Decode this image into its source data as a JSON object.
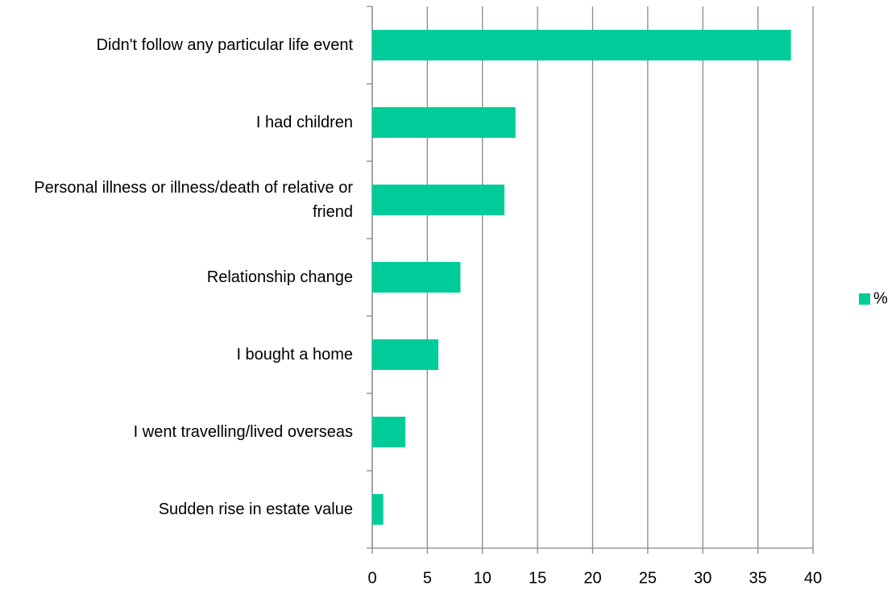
{
  "chart_data": {
    "type": "bar",
    "orientation": "horizontal",
    "categories": [
      "Didn't follow any particular life event",
      "I had children",
      "Personal illness or illness/death of relative or friend",
      "Relationship change",
      "I bought a home",
      "I went travelling/lived overseas",
      "Sudden rise in estate value"
    ],
    "series": [
      {
        "name": "%",
        "color": "#00cc99",
        "values": [
          38,
          13,
          12,
          8,
          6,
          3,
          1
        ]
      }
    ],
    "xlim": [
      0,
      40
    ],
    "xticks": [
      0,
      5,
      10,
      15,
      20,
      25,
      30,
      35,
      40
    ],
    "grid": true,
    "legend": "right"
  }
}
